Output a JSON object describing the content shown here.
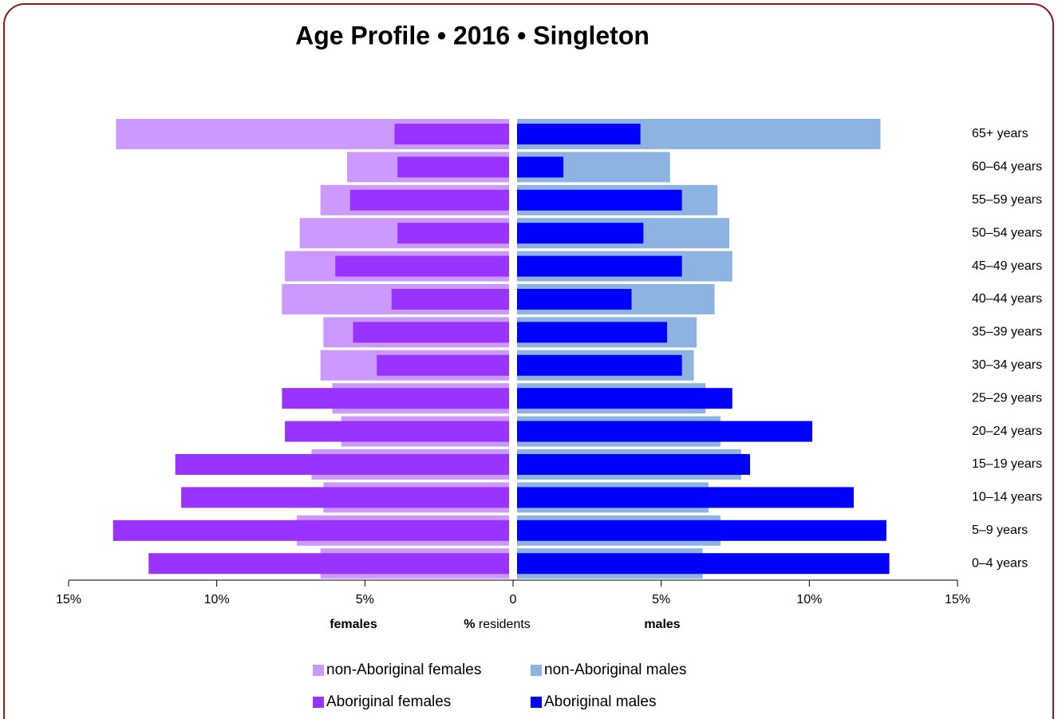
{
  "chart_data": {
    "type": "pyramid",
    "title": "Age Profile  •  2016  •  Singleton",
    "categories": [
      "65+ years",
      "60–64 years",
      "55–59 years",
      "50–54 years",
      "45–49 years",
      "40–44 years",
      "35–39 years",
      "30–34 years",
      "25–29 years",
      "20–24 years",
      "15–19 years",
      "10–14 years",
      "5–9 years",
      "0–4 years"
    ],
    "series": [
      {
        "name": "non-Aboriginal females",
        "color": "#cc99ff",
        "side": "left",
        "values": [
          13.4,
          5.6,
          6.5,
          7.2,
          7.7,
          7.8,
          6.4,
          6.5,
          6.1,
          5.8,
          6.8,
          6.4,
          7.3,
          6.5
        ]
      },
      {
        "name": "non-Aboriginal males",
        "color": "#8db3e2",
        "side": "right",
        "values": [
          12.4,
          5.3,
          6.9,
          7.3,
          7.4,
          6.8,
          6.2,
          6.1,
          6.5,
          7.0,
          7.7,
          6.6,
          7.0,
          6.4
        ]
      },
      {
        "name": "Aboriginal females",
        "color": "#9933ff",
        "side": "left",
        "values": [
          4.0,
          3.9,
          5.5,
          3.9,
          6.0,
          4.1,
          5.4,
          4.6,
          7.8,
          7.7,
          11.4,
          11.2,
          13.5,
          12.3
        ]
      },
      {
        "name": "Aboriginal males",
        "color": "#0000ff",
        "side": "right",
        "values": [
          4.3,
          1.7,
          5.7,
          4.4,
          5.7,
          4.0,
          5.2,
          5.7,
          7.4,
          10.1,
          8.0,
          11.5,
          12.6,
          12.7
        ]
      }
    ],
    "xlim": [
      0,
      15
    ],
    "xticks_left": [
      {
        "value": 15,
        "label": "15%"
      },
      {
        "value": 10,
        "label": "10%"
      },
      {
        "value": 5,
        "label": "5%"
      },
      0
    ],
    "xticks_right": [
      {
        "value": 5,
        "label": "5%"
      },
      {
        "value": 10,
        "label": "10%"
      },
      {
        "value": 15,
        "label": "15%"
      }
    ],
    "left_label": "females",
    "right_label": "males",
    "x_label_unit": "%",
    "x_label": "residents",
    "left_color": "#e8141b",
    "right_color": "#1f1fd6"
  }
}
